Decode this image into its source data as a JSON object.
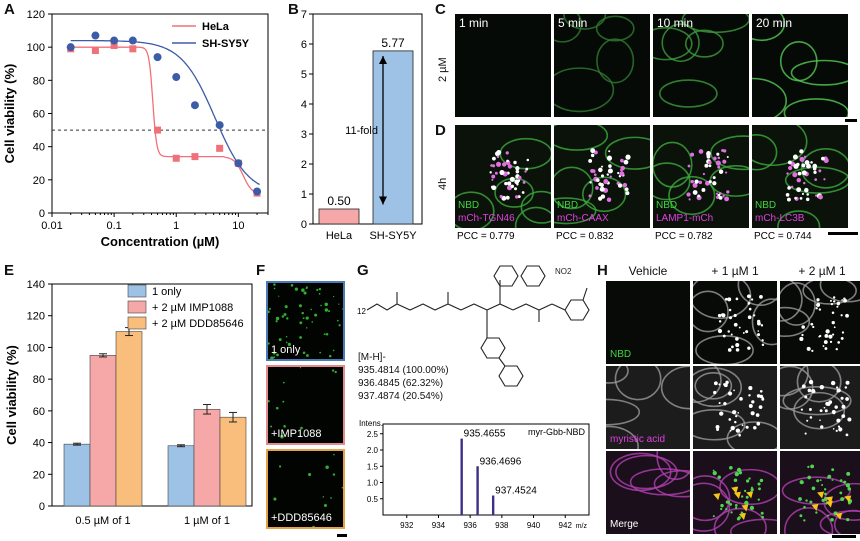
{
  "panels": {
    "A": "A",
    "B": "B",
    "C": "C",
    "D": "D",
    "E": "E",
    "F": "F",
    "G": "G",
    "H": "H"
  },
  "chart_data": [
    {
      "id": "A",
      "type": "scatter",
      "title": "",
      "xlabel": "Concentration (µM)",
      "ylabel": "Cell viability (%)",
      "xscale": "log",
      "xlim": [
        0.01,
        30
      ],
      "ylim": [
        0,
        120
      ],
      "xticks": [
        "0.01",
        "0.1",
        "1",
        "10"
      ],
      "yticks": [
        "0",
        "20",
        "40",
        "60",
        "80",
        "100",
        "120"
      ],
      "reference_line": 50,
      "legend_position": "top-right",
      "series": [
        {
          "name": "HeLa",
          "color": "#f0717a",
          "x": [
            0.02,
            0.05,
            0.1,
            0.2,
            0.5,
            1,
            2,
            5,
            10,
            20
          ],
          "y": [
            99,
            98,
            101,
            99,
            50,
            33,
            34,
            39,
            30,
            12
          ]
        },
        {
          "name": "SH-SY5Y",
          "color": "#3d5ca8",
          "x": [
            0.02,
            0.05,
            0.1,
            0.2,
            0.5,
            1,
            2,
            5,
            10,
            20
          ],
          "y": [
            100,
            107,
            104,
            104,
            94,
            82,
            65,
            53,
            30,
            13
          ]
        }
      ]
    },
    {
      "id": "B",
      "type": "bar",
      "ylabel": "GI50 value (µM)",
      "categories": [
        "HeLa",
        "SH-SY5Y"
      ],
      "values": [
        0.5,
        5.77
      ],
      "value_labels": [
        "0.50",
        "5.77"
      ],
      "colors": [
        "#f6a7a7",
        "#9ec1e6"
      ],
      "ylim": [
        0,
        7
      ],
      "yticks": [
        "0",
        "1",
        "2",
        "3",
        "4",
        "5",
        "6",
        "7"
      ],
      "annotation": "11-fold"
    },
    {
      "id": "E",
      "type": "bar",
      "ylabel": "Cell viability (%)",
      "categories": [
        "0.5 µM of 1",
        "1 µM of 1"
      ],
      "ylim": [
        0,
        140
      ],
      "yticks": [
        "0",
        "20",
        "40",
        "60",
        "80",
        "100",
        "120",
        "140"
      ],
      "legend_position": "top-center",
      "series": [
        {
          "name": "1 only",
          "color": "#9ec1e6",
          "values": [
            39,
            38
          ],
          "errors": [
            0.6,
            0.6
          ]
        },
        {
          "name": "+ 2 µM IMP1088",
          "color": "#f6a7a7",
          "values": [
            95,
            61
          ],
          "errors": [
            1,
            3
          ]
        },
        {
          "name": "+ 2 µM DDD85646",
          "color": "#f9bd7c",
          "values": [
            110,
            56
          ],
          "errors": [
            2.5,
            3
          ]
        }
      ]
    },
    {
      "id": "G",
      "type": "bar",
      "title": "myr-Gbb-NBD",
      "ylabel": "Intens.",
      "xlabel": "m/z",
      "xlim": [
        930.5,
        943.5
      ],
      "ylim": [
        0,
        2.8
      ],
      "xticks": [
        "932",
        "934",
        "936",
        "938",
        "940",
        "942"
      ],
      "yticks": [
        "0.5",
        "1.0",
        "1.5",
        "2.0",
        "2.5"
      ],
      "x": [
        935.4655,
        936.4696,
        937.4524
      ],
      "values": [
        2.35,
        1.5,
        0.6
      ],
      "labels": [
        "935.4655",
        "936.4696",
        "937.4524"
      ]
    }
  ],
  "panelC": {
    "row_label": "2 µM",
    "times": [
      "1 min",
      "5 min",
      "10 min",
      "20 min"
    ]
  },
  "panelD": {
    "row_label": "4h",
    "cells": [
      {
        "green": "NBD",
        "magenta": "mCh-TGN46",
        "pcc": "PCC = 0.779"
      },
      {
        "green": "NBD",
        "magenta": "mCh-CAAX",
        "pcc": "PCC = 0.832"
      },
      {
        "green": "NBD",
        "magenta": "LAMP1-mCh",
        "pcc": "PCC = 0.782"
      },
      {
        "green": "NBD",
        "magenta": "mCh-LC3B",
        "pcc": "PCC = 0.744"
      }
    ]
  },
  "panelF": {
    "labels": [
      "1 only",
      "+IMP1088",
      "+DDD85646"
    ]
  },
  "panelG": {
    "formula_subscript": "12",
    "ion": "[M-H]-",
    "isotopes": [
      "935.4814 (100.00%)",
      "936.4845 (62.32%)",
      "937.4874 (20.54%)"
    ],
    "no2": "NO2"
  },
  "panelH": {
    "columns": [
      "Vehicle",
      "+ 1 µM 1",
      "+ 2 µM 1"
    ],
    "rows": [
      "NBD",
      "myristic acid",
      "Merge"
    ]
  }
}
